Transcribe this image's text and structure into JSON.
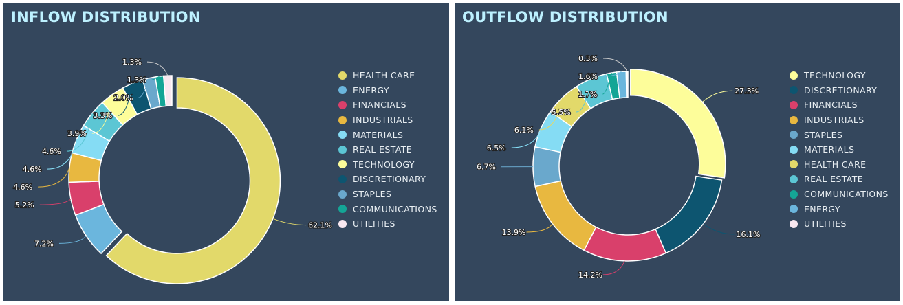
{
  "colors": {
    "HEALTH CARE": "#e2d96a",
    "ENERGY": "#6bb6dd",
    "FINANCIALS": "#d9406b",
    "INDUSTRIALS": "#e8b840",
    "MATERIALS": "#85dcf4",
    "REAL ESTATE": "#5cc6d4",
    "TECHNOLOGY": "#fdfd9a",
    "DISCRETIONARY": "#0d5570",
    "STAPLES": "#6aa8cc",
    "COMMUNICATIONS": "#14a596",
    "UTILITIES": "#f9e8f0",
    "background": "#34475d"
  },
  "chart_data": [
    {
      "type": "pie",
      "donut": true,
      "title": "INFLOW DISTRIBUTION",
      "legend_position": "right",
      "categories": [
        "HEALTH CARE",
        "ENERGY",
        "FINANCIALS",
        "INDUSTRIALS",
        "MATERIALS",
        "REAL ESTATE",
        "TECHNOLOGY",
        "DISCRETIONARY",
        "STAPLES",
        "COMMUNICATIONS",
        "UTILITIES"
      ],
      "values": [
        62.1,
        7.2,
        5.2,
        4.6,
        4.6,
        4.6,
        3.9,
        3.3,
        2.0,
        1.3,
        1.3
      ],
      "labels": [
        "62.1%",
        "7.2%",
        "5.2%",
        "4.6%",
        "4.6%",
        "4.6%",
        "3.9%",
        "3.3%",
        "2.0%",
        "1.3%",
        "1.3%"
      ]
    },
    {
      "type": "pie",
      "donut": true,
      "title": "OUTFLOW DISTRIBUTION",
      "legend_position": "right",
      "categories": [
        "TECHNOLOGY",
        "DISCRETIONARY",
        "FINANCIALS",
        "INDUSTRIALS",
        "STAPLES",
        "MATERIALS",
        "HEALTH CARE",
        "REAL ESTATE",
        "COMMUNICATIONS",
        "ENERGY",
        "UTILITIES"
      ],
      "values": [
        27.3,
        16.1,
        14.2,
        13.9,
        6.7,
        6.5,
        6.1,
        5.5,
        1.7,
        1.6,
        0.3
      ],
      "labels": [
        "27.3%",
        "16.1%",
        "14.2%",
        "13.9%",
        "6.7%",
        "6.5%",
        "6.1%",
        "5.5%",
        "1.7%",
        "1.6%",
        "0.3%"
      ]
    }
  ]
}
